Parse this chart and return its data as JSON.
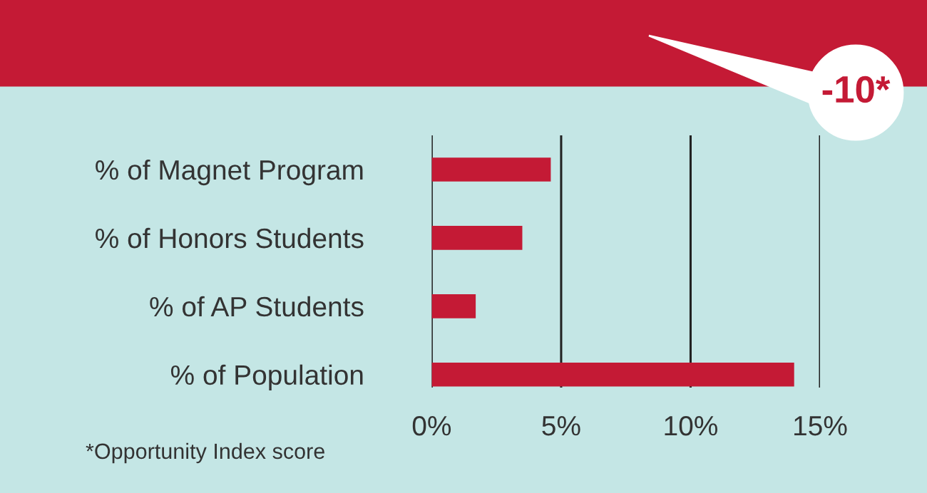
{
  "chart_data": {
    "type": "bar",
    "orientation": "horizontal",
    "categories": [
      "% of Magnet Program",
      "% of Honors Students",
      "% of AP Students",
      "% of Population"
    ],
    "values": [
      4.6,
      3.5,
      1.7,
      14
    ],
    "color": "#c41a35",
    "xlim": [
      0,
      15
    ],
    "xticks": [
      {
        "value": 0,
        "label": "0%"
      },
      {
        "value": 5,
        "label": "5%"
      },
      {
        "value": 10,
        "label": "10%"
      },
      {
        "value": 15,
        "label": "15%"
      }
    ],
    "grid": "x",
    "annotations": [
      "-10*",
      "*Opportunity Index score"
    ]
  }
}
